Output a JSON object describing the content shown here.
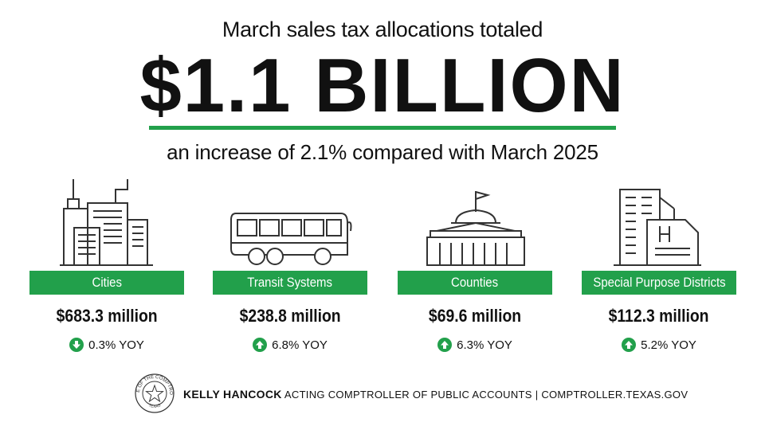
{
  "header": {
    "intro": "March sales tax allocations totaled",
    "headline": "$1.1 BILLION",
    "subhead": "an increase of 2.1% compared with March 2025"
  },
  "panels": [
    {
      "label": "Cities",
      "amount": "$683.3 million",
      "change": "0.3% YOY",
      "direction": "down"
    },
    {
      "label": "Transit Systems",
      "amount": "$238.8 million",
      "change": "6.8% YOY",
      "direction": "up"
    },
    {
      "label": "Counties",
      "amount": "$69.6 million",
      "change": "6.3% YOY",
      "direction": "up"
    },
    {
      "label": "Special Purpose Districts",
      "amount": "$112.3 million",
      "change": "5.2% YOY",
      "direction": "up"
    }
  ],
  "footer": {
    "name": "KELLY HANCOCK",
    "title": "ACTING COMPTROLLER OF PUBLIC ACCOUNTS",
    "separator": "|",
    "website": "COMPTROLLER.TEXAS.GOV",
    "seal_top": "OFFICE OF THE COMPTROLLER",
    "seal_bottom": "TEXAS"
  }
}
